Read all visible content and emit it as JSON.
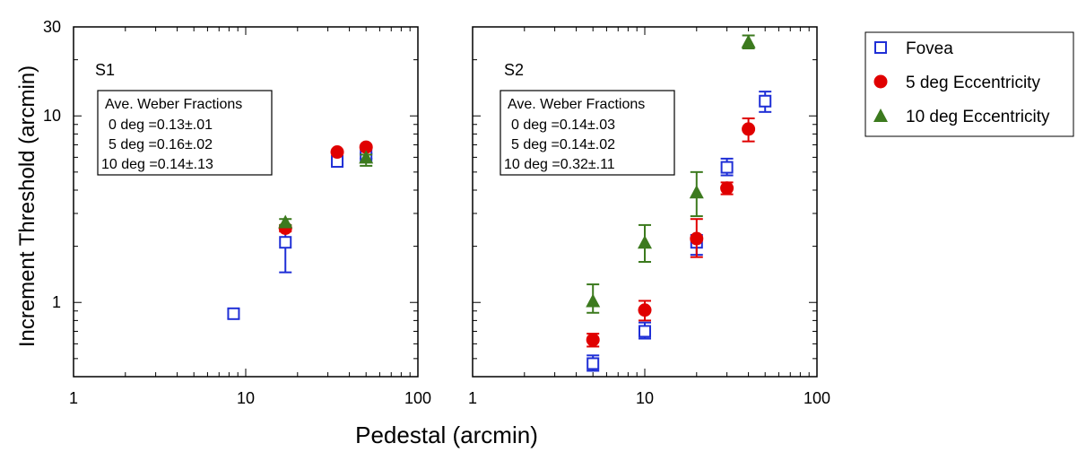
{
  "figure": {
    "ylabel": "Increment Threshold (arcmin)",
    "xlabel": "Pedestal (arcmin)",
    "legend": {
      "placement": "right",
      "entries": [
        {
          "label": "Fovea",
          "marker": "open-square",
          "color": "#1f2fd6"
        },
        {
          "label": "5 deg Eccentricity",
          "marker": "filled-circle",
          "color": "#e00000"
        },
        {
          "label": "10 deg Eccentricity",
          "marker": "filled-triangle",
          "color": "#3c7a1e"
        }
      ]
    }
  },
  "chart_data": [
    {
      "type": "scatter",
      "panel_label": "S1",
      "xscale": "log",
      "yscale": "log",
      "xlim": [
        1,
        100
      ],
      "ylim": [
        0.4,
        30
      ],
      "x_tick_labels": [
        "1",
        "10",
        "100"
      ],
      "y_tick_labels": [
        "1",
        "10",
        "30"
      ],
      "y_tick_values": [
        1,
        10,
        30
      ],
      "annotation": {
        "title": "Ave. Weber Fractions",
        "lines": [
          "0 deg =0.13±.01",
          "5 deg =0.16±.02",
          "10 deg =0.14±.13"
        ]
      },
      "series": [
        {
          "name": "Fovea",
          "x": [
            8.5,
            17,
            34,
            50
          ],
          "y": [
            0.87,
            2.1,
            5.7,
            6.1
          ],
          "yerr_low": [
            0.82,
            1.45,
            5.5,
            5.9
          ],
          "yerr_high": [
            0.92,
            2.5,
            5.9,
            6.3
          ]
        },
        {
          "name": "5 deg Eccentricity",
          "x": [
            17,
            34,
            50
          ],
          "y": [
            2.5,
            6.4,
            6.8
          ],
          "yerr_low": [
            2.4,
            6.3,
            6.7
          ],
          "yerr_high": [
            2.6,
            6.5,
            6.9
          ]
        },
        {
          "name": "10 deg Eccentricity",
          "x": [
            17,
            50
          ],
          "y": [
            2.7,
            6.0
          ],
          "yerr_low": [
            2.6,
            5.4
          ],
          "yerr_high": [
            2.8,
            6.2
          ]
        }
      ]
    },
    {
      "type": "scatter",
      "panel_label": "S2",
      "xscale": "log",
      "yscale": "log",
      "xlim": [
        1,
        100
      ],
      "ylim": [
        0.4,
        30
      ],
      "x_tick_labels": [
        "1",
        "10",
        "100"
      ],
      "annotation": {
        "title": "Ave. Weber Fractions",
        "lines": [
          "0 deg =0.14±.03",
          "5 deg =0.14±.02",
          "10 deg =0.32±.11"
        ]
      },
      "series": [
        {
          "name": "Fovea",
          "x": [
            5,
            10,
            20,
            30,
            50
          ],
          "y": [
            0.47,
            0.7,
            2.1,
            5.3,
            12
          ],
          "yerr_low": [
            0.43,
            0.64,
            1.8,
            4.8,
            10.5
          ],
          "yerr_high": [
            0.52,
            0.78,
            2.3,
            5.9,
            13.5
          ]
        },
        {
          "name": "5 deg Eccentricity",
          "x": [
            5,
            10,
            20,
            30,
            40
          ],
          "y": [
            0.63,
            0.91,
            2.2,
            4.1,
            8.5
          ],
          "yerr_low": [
            0.58,
            0.8,
            1.75,
            3.8,
            7.3
          ],
          "yerr_high": [
            0.68,
            1.02,
            2.8,
            4.4,
            9.7
          ]
        },
        {
          "name": "10 deg Eccentricity",
          "x": [
            5,
            10,
            20,
            40
          ],
          "y": [
            1.02,
            2.1,
            3.9,
            25
          ],
          "yerr_low": [
            0.88,
            1.65,
            2.9,
            23
          ],
          "yerr_high": [
            1.25,
            2.6,
            5.0,
            27
          ]
        }
      ]
    }
  ]
}
